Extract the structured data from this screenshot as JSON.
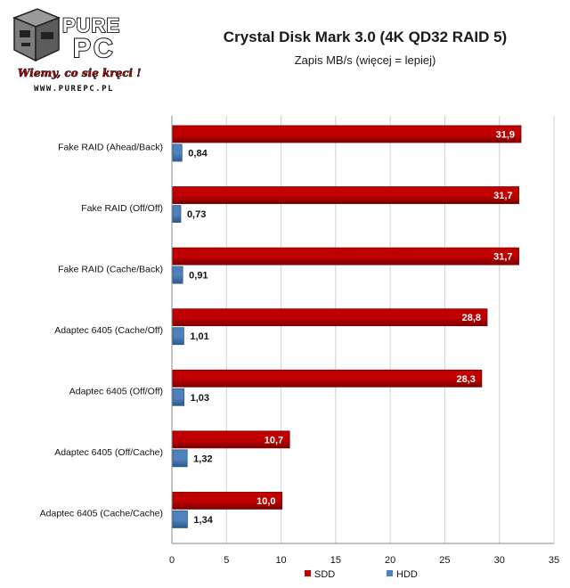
{
  "logo": {
    "brand_top": "PURE",
    "brand_bottom": "PC",
    "slogan": "Wiemy, co się kręci !",
    "url": "WWW.PUREPC.PL"
  },
  "colors": {
    "ssd": "#c00000",
    "ssd_dark": "#7a0000",
    "hdd": "#4f81bd",
    "hdd_dark": "#2c5a8c",
    "grid": "#d0d0d0",
    "axis": "#888888"
  },
  "chart_data": {
    "type": "bar",
    "orientation": "horizontal",
    "title": "Crystal Disk Mark 3.0 (4K QD32 RAID 5)",
    "subtitle": "Zapis MB/s (więcej = lepiej)",
    "categories": [
      "Fake RAID (Ahead/Back)",
      "Fake RAID (Off/Off)",
      "Fake RAID (Cache/Back)",
      "Adaptec 6405 (Cache/Off)",
      "Adaptec 6405 (Off/Off)",
      "Adaptec 6405 (Off/Cache)",
      "Adaptec 6405 (Cache/Cache)"
    ],
    "series": [
      {
        "name": "SDD",
        "values": [
          31.9,
          31.7,
          31.7,
          28.8,
          28.3,
          10.7,
          10.0
        ],
        "labels": [
          "31,9",
          "31,7",
          "31,7",
          "28,8",
          "28,3",
          "10,7",
          "10,0"
        ]
      },
      {
        "name": "HDD",
        "values": [
          0.84,
          0.73,
          0.91,
          1.01,
          1.03,
          1.32,
          1.34
        ],
        "labels": [
          "0,84",
          "0,73",
          "0,91",
          "1,01",
          "1,03",
          "1,32",
          "1,34"
        ]
      }
    ],
    "xlim": [
      0,
      35
    ],
    "xticks": [
      0,
      5,
      10,
      15,
      20,
      25,
      30,
      35
    ],
    "xtick_labels": [
      "0",
      "5",
      "10",
      "15",
      "20",
      "25",
      "30",
      "35"
    ],
    "grid": true,
    "legend_position": "bottom"
  }
}
